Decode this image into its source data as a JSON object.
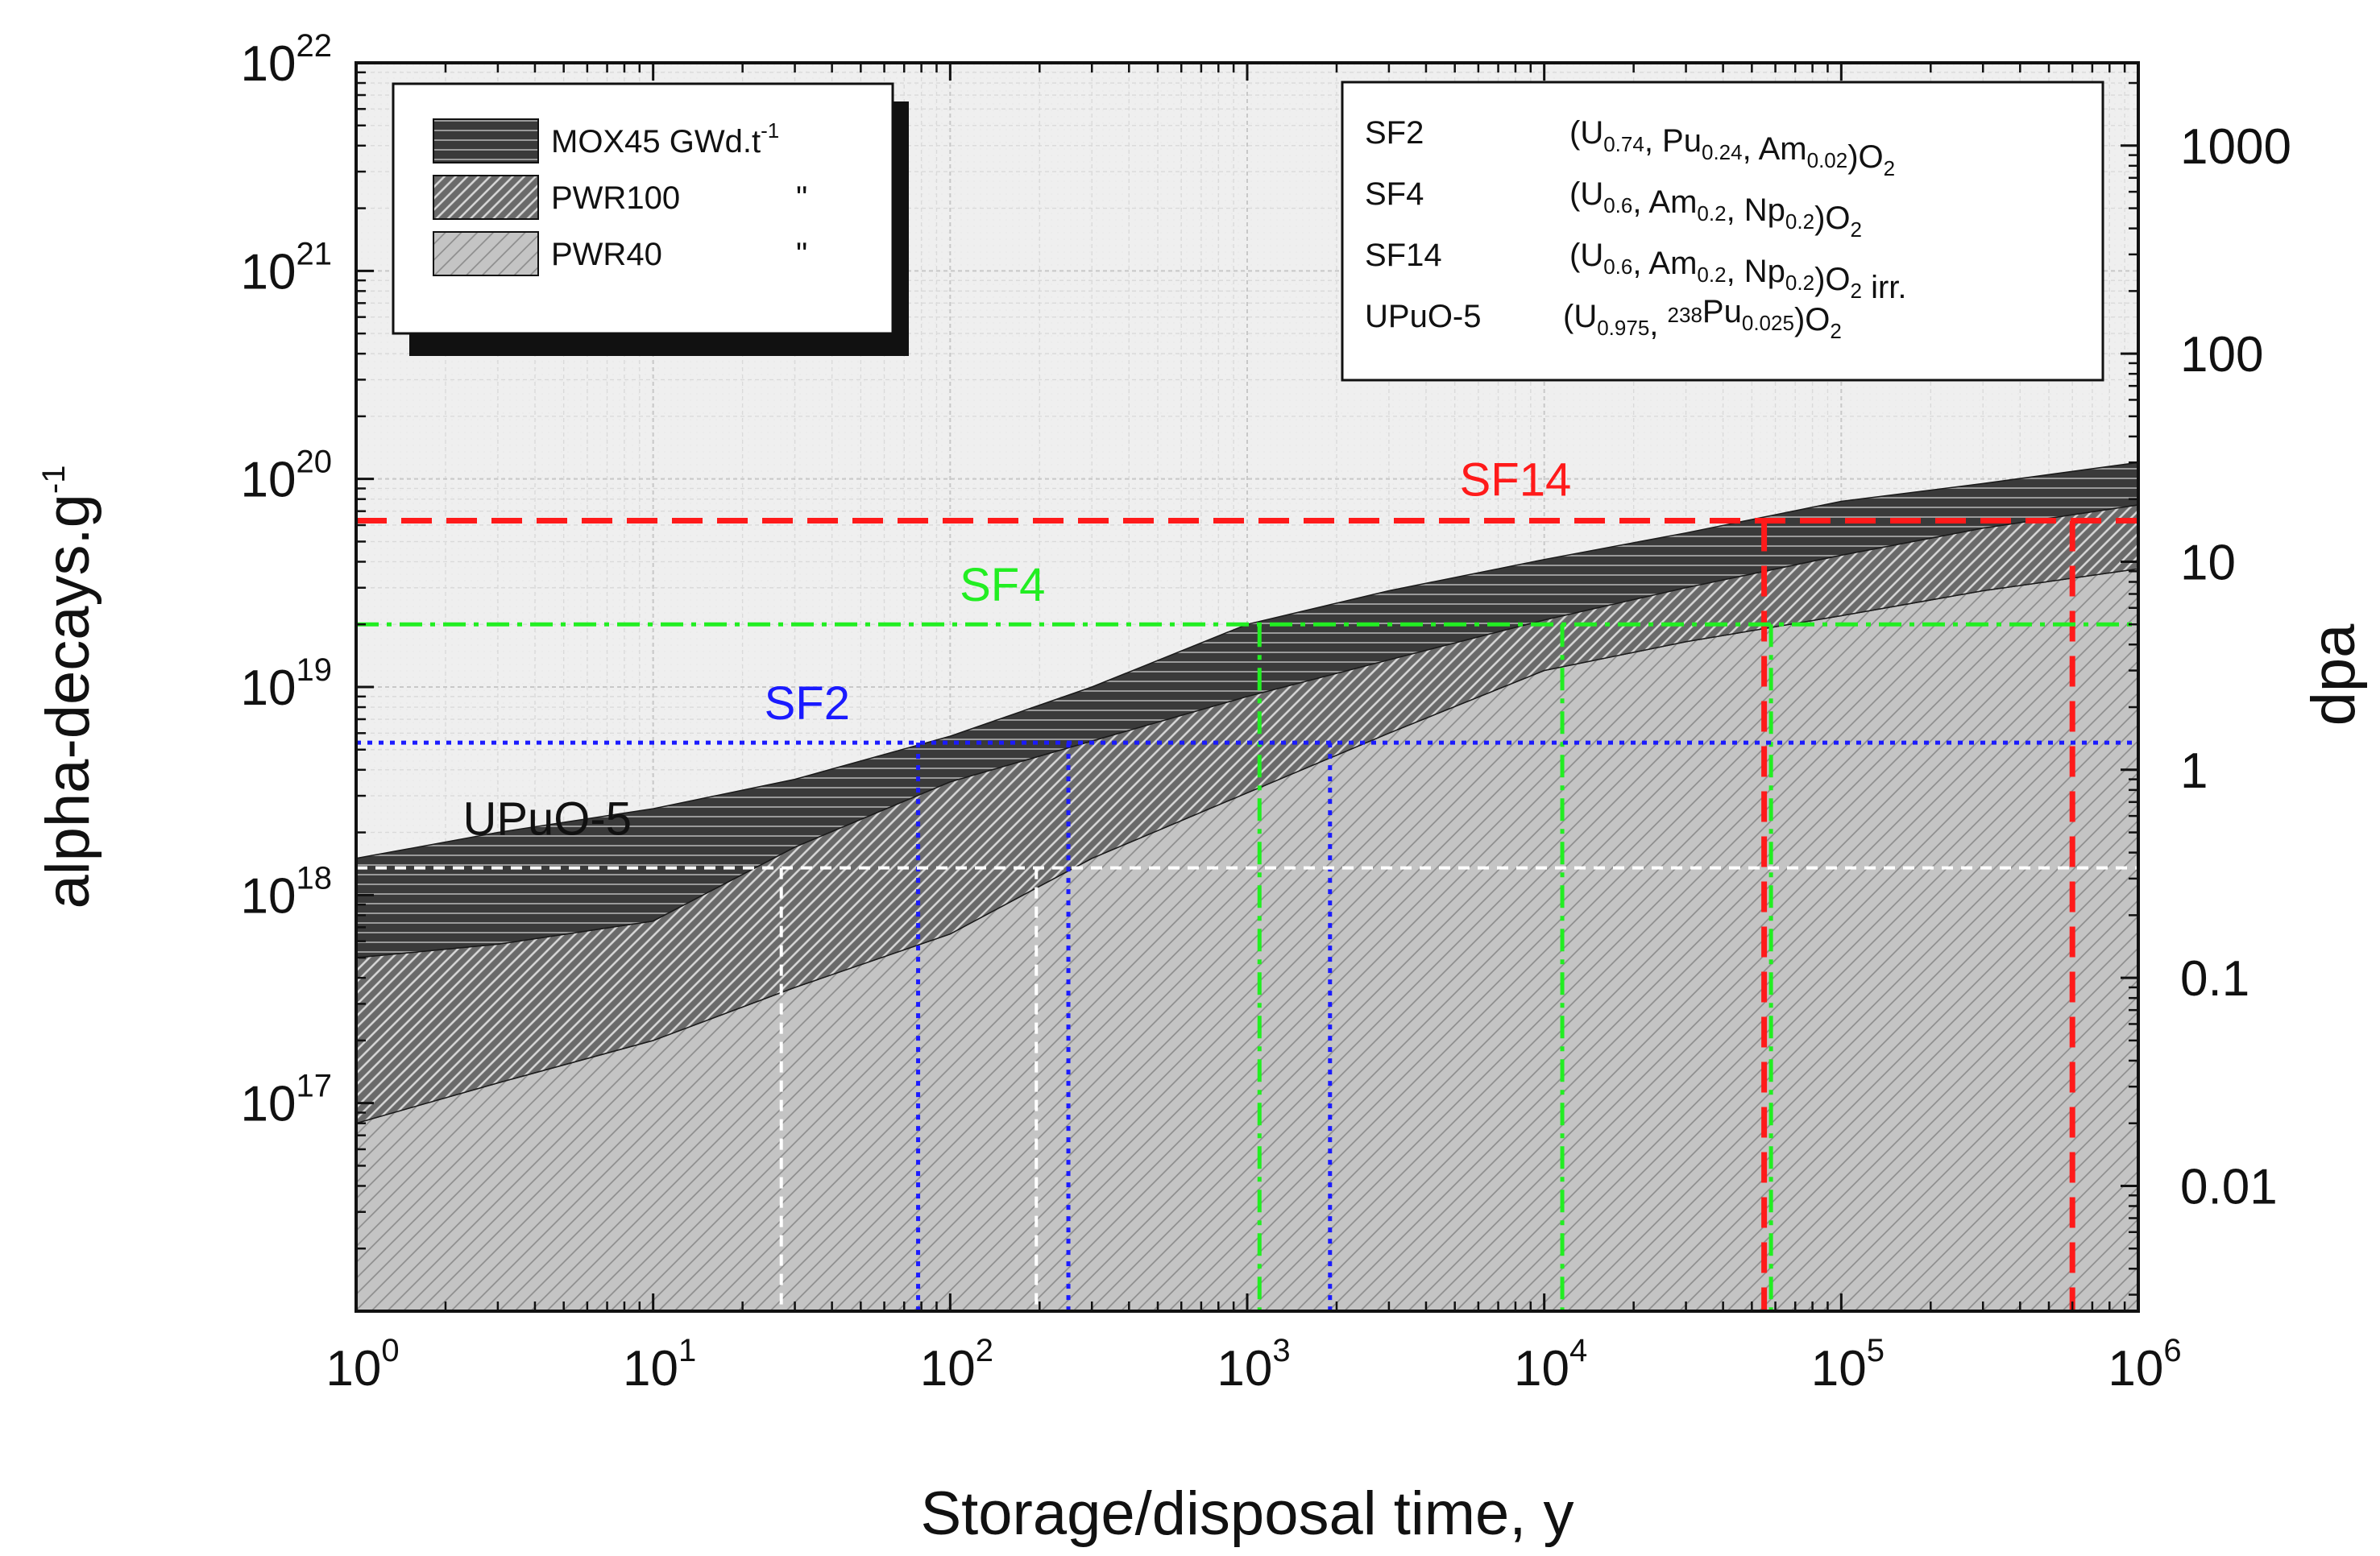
{
  "chart_data": {
    "type": "area",
    "xlabel": "Storage/disposal time, y",
    "ylabel": "alpha-decays.g",
    "ylabel_sup": "-1",
    "y2label": "dpa",
    "x_scale": "log",
    "y_scale": "log",
    "xlim": [
      1,
      1000000
    ],
    "ylim": [
      1e+16,
      1e+22
    ],
    "y2lim": [
      0.0025,
      2500
    ],
    "grid": true,
    "x_ticks": [
      {
        "value": 1,
        "base": "10",
        "exp": "0"
      },
      {
        "value": 10,
        "base": "10",
        "exp": "1"
      },
      {
        "value": 100,
        "base": "10",
        "exp": "2"
      },
      {
        "value": 1000,
        "base": "10",
        "exp": "3"
      },
      {
        "value": 10000,
        "base": "10",
        "exp": "4"
      },
      {
        "value": 100000,
        "base": "10",
        "exp": "5"
      },
      {
        "value": 1000000,
        "base": "10",
        "exp": "6"
      }
    ],
    "y_ticks": [
      {
        "value": 1e+17,
        "base": "10",
        "exp": "17"
      },
      {
        "value": 1e+18,
        "base": "10",
        "exp": "18"
      },
      {
        "value": 1e+19,
        "base": "10",
        "exp": "19"
      },
      {
        "value": 1e+20,
        "base": "10",
        "exp": "20"
      },
      {
        "value": 1e+21,
        "base": "10",
        "exp": "21"
      },
      {
        "value": 1e+22,
        "base": "10",
        "exp": "22"
      }
    ],
    "y2_ticks": [
      {
        "value": 0.01,
        "label": "0.01"
      },
      {
        "value": 0.1,
        "label": "0.1"
      },
      {
        "value": 1,
        "label": "1"
      },
      {
        "value": 10,
        "label": "10"
      },
      {
        "value": 100,
        "label": "100"
      },
      {
        "value": 1000,
        "label": "1000"
      }
    ],
    "series": [
      {
        "name": "MOX45",
        "legend_label": "MOX45  GWd.t",
        "legend_sup": "-1",
        "pattern": "horizontal",
        "fill": "#3c3c3c",
        "x": [
          1,
          3,
          10,
          30,
          100,
          300,
          1000,
          3000,
          10000,
          30000,
          100000,
          300000,
          1000000
        ],
        "y": [
          1.5e+18,
          2e+18,
          2.6e+18,
          3.6e+18,
          5.8e+18,
          1e+19,
          2e+19,
          2.9e+19,
          4.1e+19,
          5.5e+19,
          7.8e+19,
          9.5e+19,
          1.2e+20
        ]
      },
      {
        "name": "PWR100",
        "legend_label": "PWR100",
        "legend_suffix": "\"",
        "pattern": "diagonal-dense",
        "fill": "#6e6e6e",
        "x": [
          1,
          3,
          10,
          30,
          100,
          300,
          1000,
          3000,
          10000,
          30000,
          100000,
          300000,
          1000000
        ],
        "y": [
          5e+17,
          5.8e+17,
          7.5e+17,
          1.7e+18,
          3.5e+18,
          5.5e+18,
          9e+18,
          1.35e+19,
          2.1e+19,
          3e+19,
          4.3e+19,
          5.8e+19,
          7.5e+19
        ]
      },
      {
        "name": "PWR40",
        "legend_label": "PWR40",
        "legend_suffix": "\"",
        "pattern": "diagonal-light",
        "fill": "#c8c8c8",
        "x": [
          1,
          3,
          10,
          30,
          100,
          300,
          1000,
          3000,
          10000,
          30000,
          100000,
          300000,
          1000000
        ],
        "y": [
          8e+16,
          1.25e+17,
          2e+17,
          3.6e+17,
          6.5e+17,
          1.5e+18,
          3.1e+18,
          6e+18,
          1.2e+19,
          1.65e+19,
          2.2e+19,
          2.9e+19,
          3.7e+19
        ]
      }
    ],
    "thresholds": [
      {
        "name": "SF14",
        "label": "SF14",
        "color": "#ff1a1a",
        "style": "long-dash",
        "y": 6.3e+19,
        "x_start": 1,
        "verticals": [
          55000,
          600000
        ]
      },
      {
        "name": "SF4",
        "label": "SF4",
        "color": "#22ee22",
        "style": "dash-dot",
        "y": 2e+19,
        "x_start": 1,
        "verticals": [
          1100,
          11500,
          58000
        ]
      },
      {
        "name": "SF2",
        "label": "SF2",
        "color": "#1a1aff",
        "style": "dotted",
        "y": 5.4e+18,
        "x_start": 1,
        "verticals": [
          78,
          250,
          1900
        ]
      },
      {
        "name": "UPuO-5",
        "label": "UPuO-5",
        "color": "#ffffff",
        "style": "dashed",
        "y": 1.35e+18,
        "x_start": 1,
        "verticals": [
          27,
          195
        ]
      }
    ],
    "annotations": [
      {
        "text": "SF14",
        "color": "#ff1a1a",
        "x": 8000,
        "y": 8.3e+19
      },
      {
        "text": "SF4",
        "color": "#22ee22",
        "x": 150,
        "y": 2.6e+19
      },
      {
        "text": "SF2",
        "color": "#1a1aff",
        "x": 33,
        "y": 7e+18
      },
      {
        "text": "UPuO-5",
        "color": "#111111",
        "x": 4.4,
        "y": 1.95e+18
      }
    ],
    "legend_materials": [
      {
        "code": "SF2",
        "color": "#1a1aff",
        "formula": [
          [
            "(U",
            ""
          ],
          [
            "0.74",
            "sub"
          ],
          [
            ", Pu",
            ""
          ],
          [
            "0.24",
            "sub"
          ],
          [
            ", Am",
            ""
          ],
          [
            "0.02",
            "sub"
          ],
          [
            ")O",
            ""
          ],
          [
            "2",
            "sub"
          ]
        ]
      },
      {
        "code": "SF4",
        "color": "#22ee22",
        "formula": [
          [
            "(U",
            ""
          ],
          [
            "0.6",
            "sub"
          ],
          [
            ", Am",
            ""
          ],
          [
            "0.2",
            "sub"
          ],
          [
            ", Np",
            ""
          ],
          [
            "0.2",
            "sub"
          ],
          [
            ")O",
            ""
          ],
          [
            "2",
            "sub"
          ]
        ]
      },
      {
        "code": "SF14",
        "color": "#ff1a1a",
        "formula": [
          [
            "(U",
            ""
          ],
          [
            "0.6",
            "sub"
          ],
          [
            ", Am",
            ""
          ],
          [
            "0.2",
            "sub"
          ],
          [
            ", Np",
            ""
          ],
          [
            "0.2",
            "sub"
          ],
          [
            ")O",
            ""
          ],
          [
            "2",
            "sub"
          ],
          [
            " irr.",
            ""
          ]
        ]
      },
      {
        "code": "UPuO-5",
        "color": "#111111",
        "formula": [
          [
            "(U",
            ""
          ],
          [
            "0.975",
            "sub"
          ],
          [
            ", ",
            ""
          ],
          [
            "238",
            "sup"
          ],
          [
            "Pu",
            ""
          ],
          [
            "0.025",
            "sub"
          ],
          [
            ")O",
            ""
          ],
          [
            "2",
            "sub"
          ]
        ]
      }
    ]
  }
}
